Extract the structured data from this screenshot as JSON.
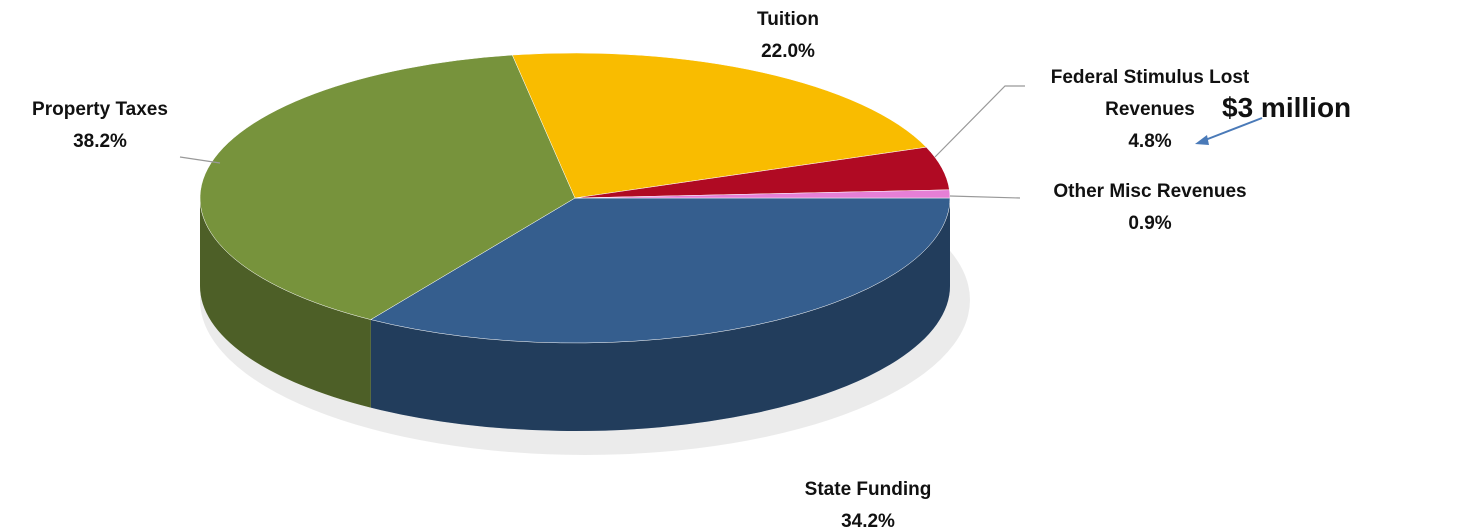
{
  "chart_data": {
    "type": "pie",
    "categories": [
      "State Funding",
      "Property Taxes",
      "Tuition",
      "Federal Stimulus Lost Revenues",
      "Other Misc Revenues"
    ],
    "values": [
      34.2,
      38.2,
      22.0,
      4.8,
      0.9
    ],
    "value_labels": [
      "34.2%",
      "38.2%",
      "22.0%",
      "4.8%",
      "0.9%"
    ],
    "colors": [
      "#355e8e",
      "#77933c",
      "#f9bc00",
      "#b00a23",
      "#e67fd6"
    ],
    "annotation": "$3 million"
  }
}
